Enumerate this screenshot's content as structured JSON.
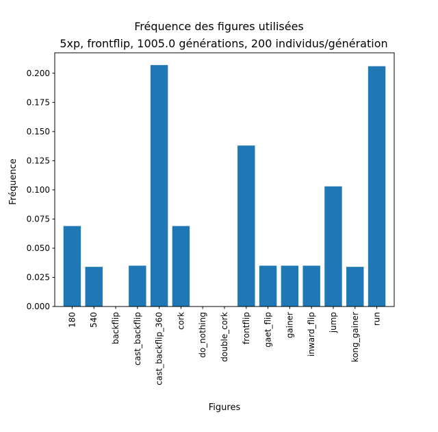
{
  "chart_data": {
    "type": "bar",
    "title": "Fréquence des figures utilisées",
    "subtitle": "5xp, frontflip, 1005.0 générations, 200 individus/génération",
    "xlabel": "Figures",
    "ylabel": "Fréquence",
    "categories": [
      "180",
      "540",
      "backflip",
      "cast_backflip",
      "cast_backflip_360",
      "cork",
      "do_nothing",
      "double_cork",
      "frontflip",
      "gaet_flip",
      "gainer",
      "inward_flip",
      "jump",
      "kong_gainer",
      "run"
    ],
    "values": [
      0.069,
      0.034,
      0.0,
      0.035,
      0.207,
      0.069,
      0.0,
      0.0,
      0.138,
      0.035,
      0.035,
      0.035,
      0.103,
      0.034,
      0.206
    ],
    "yticks": [
      "0.000",
      "0.025",
      "0.050",
      "0.075",
      "0.100",
      "0.125",
      "0.150",
      "0.175",
      "0.200"
    ],
    "ylim": [
      0,
      0.2175
    ],
    "grid": false,
    "bar_color": "#1f77b4"
  }
}
